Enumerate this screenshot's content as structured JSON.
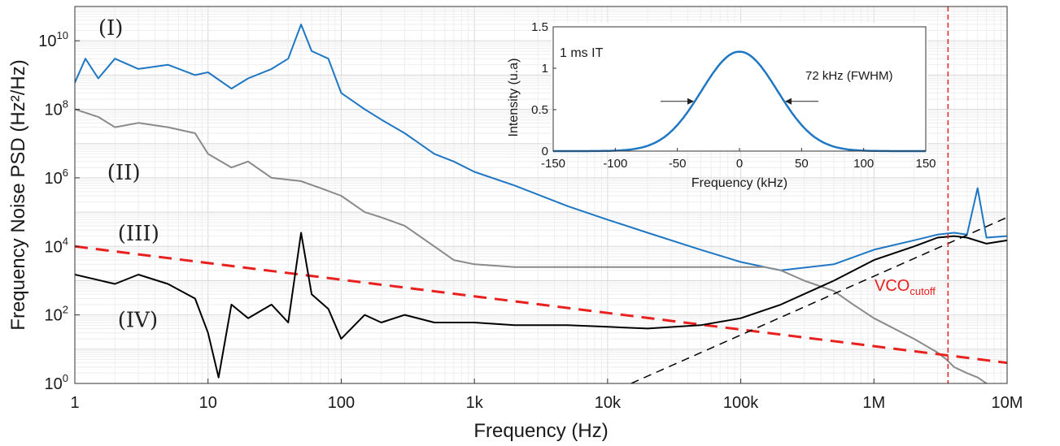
{
  "chart_data": [
    {
      "type": "line",
      "xscale": "log",
      "yscale": "log",
      "xlim": [
        1,
        10000000
      ],
      "ylim": [
        1,
        100000000000
      ],
      "grid": true,
      "xlabel": "Frequency (Hz)",
      "ylabel": "Frequency Noise PSD (Hz²/Hz)",
      "x_ticks": [
        {
          "value": 1,
          "label": "1"
        },
        {
          "value": 10,
          "label": "10"
        },
        {
          "value": 100,
          "label": "100"
        },
        {
          "value": 1000,
          "label": "1k"
        },
        {
          "value": 10000,
          "label": "10k"
        },
        {
          "value": 100000,
          "label": "100k"
        },
        {
          "value": 1000000,
          "label": "1M"
        },
        {
          "value": 10000000,
          "label": "10M"
        }
      ],
      "y_ticks": [
        {
          "value": 1,
          "base": "10",
          "exp": "0"
        },
        {
          "value": 100,
          "base": "10",
          "exp": "2"
        },
        {
          "value": 10000,
          "base": "10",
          "exp": "4"
        },
        {
          "value": 1000000,
          "base": "10",
          "exp": "6"
        },
        {
          "value": 100000000,
          "base": "10",
          "exp": "8"
        },
        {
          "value": 10000000000,
          "base": "10",
          "exp": "10"
        }
      ],
      "series": [
        {
          "name": "(I)",
          "color": "#1f77c4",
          "label_at": [
            1.5,
            15000000000
          ],
          "points": [
            [
              1,
              600000000
            ],
            [
              1.2,
              3000000000
            ],
            [
              1.5,
              800000000
            ],
            [
              2,
              3000000000
            ],
            [
              3,
              1500000000
            ],
            [
              5,
              2000000000
            ],
            [
              8,
              1000000000
            ],
            [
              10,
              1200000000
            ],
            [
              15,
              400000000
            ],
            [
              20,
              800000000
            ],
            [
              30,
              1500000000
            ],
            [
              40,
              3000000000
            ],
            [
              50,
              30000000000
            ],
            [
              60,
              5000000000
            ],
            [
              80,
              3000000000
            ],
            [
              100,
              300000000
            ],
            [
              150,
              100000000
            ],
            [
              200,
              50000000
            ],
            [
              300,
              20000000
            ],
            [
              500,
              5000000
            ],
            [
              700,
              3000000
            ],
            [
              1000,
              1500000
            ],
            [
              2000,
              600000
            ],
            [
              5000,
              150000
            ],
            [
              10000,
              60000
            ],
            [
              20000,
              25000
            ],
            [
              50000,
              8000
            ],
            [
              100000,
              3500
            ],
            [
              200000,
              2000
            ],
            [
              500000,
              3000
            ],
            [
              1000000,
              8000
            ],
            [
              2000000,
              15000
            ],
            [
              3000000,
              22000
            ],
            [
              4000000,
              25000
            ],
            [
              5000000,
              22000
            ],
            [
              6000000,
              500000
            ],
            [
              7000000,
              18000
            ],
            [
              10000000,
              20000
            ]
          ]
        },
        {
          "name": "(II)",
          "color": "#8a8a8a",
          "label_at": [
            1.75,
            900000
          ],
          "points": [
            [
              1,
              100000000
            ],
            [
              1.5,
              60000000
            ],
            [
              2,
              30000000
            ],
            [
              3,
              40000000
            ],
            [
              5,
              30000000
            ],
            [
              8,
              20000000
            ],
            [
              10,
              5000000
            ],
            [
              15,
              2000000
            ],
            [
              20,
              3000000
            ],
            [
              30,
              1000000
            ],
            [
              50,
              800000
            ],
            [
              70,
              500000
            ],
            [
              100,
              300000
            ],
            [
              150,
              100000
            ],
            [
              200,
              70000
            ],
            [
              300,
              40000
            ],
            [
              500,
              10000
            ],
            [
              700,
              4000
            ],
            [
              1000,
              3000
            ],
            [
              2000,
              2500
            ],
            [
              5000,
              2500
            ],
            [
              10000,
              2500
            ],
            [
              30000,
              2500
            ],
            [
              50000,
              2500
            ],
            [
              100000,
              2500
            ],
            [
              150000,
              2500
            ],
            [
              200000,
              2000
            ],
            [
              300000,
              1000
            ],
            [
              500000,
              500
            ],
            [
              700000,
              200
            ],
            [
              1000000,
              80
            ],
            [
              2000000,
              20
            ],
            [
              3000000,
              8
            ],
            [
              3500000,
              5
            ],
            [
              4000000,
              3
            ],
            [
              5000000,
              2
            ],
            [
              6000000,
              1.5
            ],
            [
              7000000,
              1
            ],
            [
              8000000,
              0.8
            ]
          ]
        },
        {
          "name": "(III)",
          "color": "#e8211e",
          "label_at": [
            2.1,
            15000
          ],
          "points": [
            [
              1,
              10000
            ],
            [
              10000000,
              4
            ]
          ]
        },
        {
          "name": "(IV)",
          "color": "#000000",
          "label_at": [
            2.1,
            45
          ],
          "points": [
            [
              1,
              1500
            ],
            [
              2,
              800
            ],
            [
              3,
              1500
            ],
            [
              5,
              800
            ],
            [
              8,
              300
            ],
            [
              10,
              30
            ],
            [
              12,
              1.5
            ],
            [
              15,
              200
            ],
            [
              20,
              80
            ],
            [
              30,
              200
            ],
            [
              40,
              60
            ],
            [
              50,
              25000
            ],
            [
              60,
              400
            ],
            [
              80,
              150
            ],
            [
              100,
              20
            ],
            [
              150,
              100
            ],
            [
              200,
              60
            ],
            [
              300,
              100
            ],
            [
              500,
              60
            ],
            [
              1000,
              60
            ],
            [
              2000,
              50
            ],
            [
              5000,
              50
            ],
            [
              10000,
              45
            ],
            [
              20000,
              40
            ],
            [
              50000,
              50
            ],
            [
              100000,
              80
            ],
            [
              200000,
              200
            ],
            [
              500000,
              1000
            ],
            [
              1000000,
              4000
            ],
            [
              2000000,
              10000
            ],
            [
              3000000,
              18000
            ],
            [
              4000000,
              20000
            ],
            [
              5000000,
              18000
            ],
            [
              7000000,
              12000
            ],
            [
              10000000,
              15000
            ]
          ]
        },
        {
          "name": "",
          "color": "#000000",
          "dash": true,
          "points": [
            [
              15000,
              1
            ],
            [
              10000000,
              70000
            ]
          ]
        }
      ],
      "annotations": {
        "vco_line": {
          "x": 3600000,
          "color": "#e8211e"
        },
        "vco_label": {
          "main": "VCO",
          "sub": "cutoff"
        }
      }
    },
    {
      "type": "line",
      "xlim": [
        -150,
        150
      ],
      "ylim": [
        0,
        1.5
      ],
      "xlabel": "Frequency (kHz)",
      "ylabel": "Intensity (u.a)",
      "x_ticks": [
        -150,
        -100,
        -50,
        0,
        50,
        100,
        150
      ],
      "y_ticks": [
        {
          "value": 0,
          "label": "0"
        },
        {
          "value": 0.5,
          "label": "0.5"
        },
        {
          "value": 1,
          "label": "1"
        },
        {
          "value": 1.5,
          "label": "1.5"
        }
      ],
      "series": [
        {
          "name": "",
          "color": "#1f77c4",
          "gaussian": {
            "amplitude": 1.2,
            "center": 0,
            "fwhm": 72
          }
        }
      ],
      "annotations": {
        "it_label": "1 ms IT",
        "fwhm_label": "72 kHz (FWHM)",
        "arrow_y": 0.6
      }
    }
  ]
}
